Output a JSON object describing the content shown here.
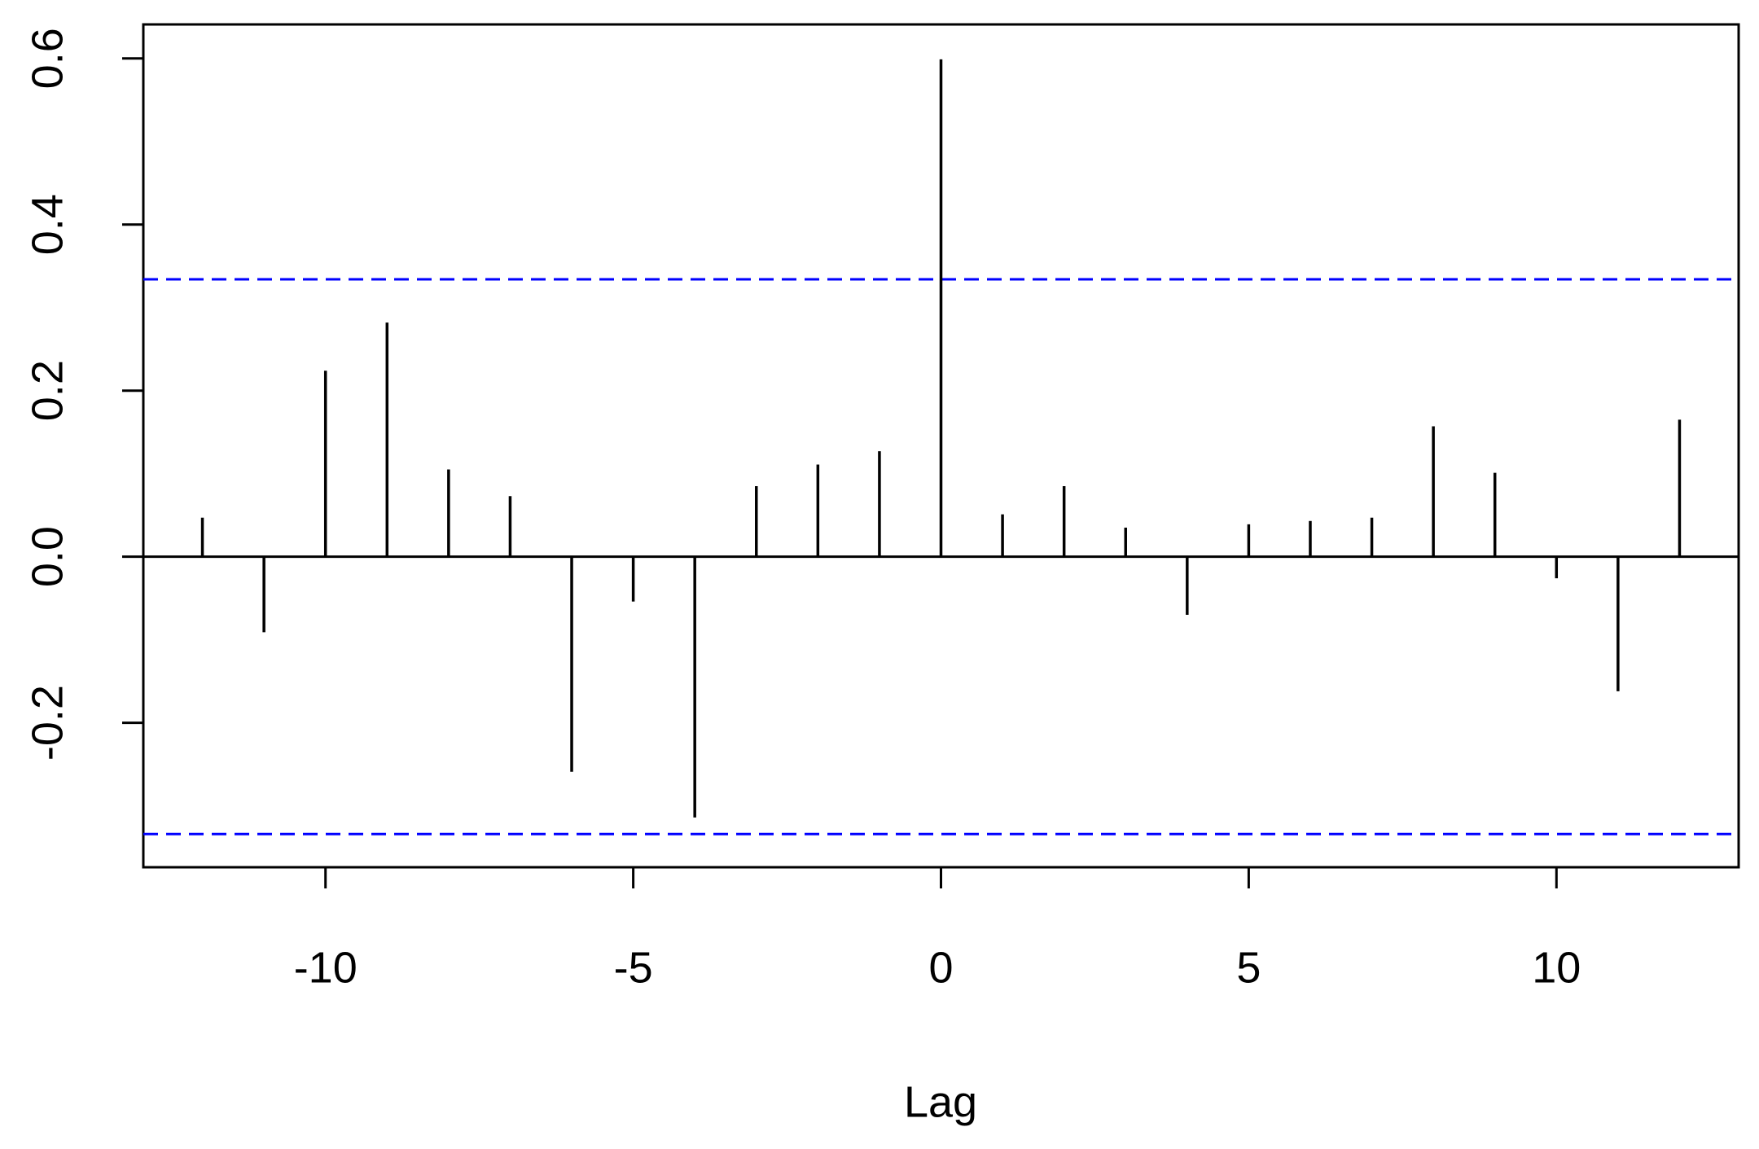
{
  "chart_data": {
    "type": "stem",
    "x_label": "Lag",
    "x": [
      -12,
      -11,
      -10,
      -9,
      -8,
      -7,
      -6,
      -5,
      -4,
      -3,
      -2,
      -1,
      0,
      1,
      2,
      3,
      4,
      5,
      6,
      7,
      8,
      9,
      10,
      11,
      12
    ],
    "values": [
      0.047,
      -0.091,
      0.224,
      0.282,
      0.105,
      0.073,
      -0.259,
      -0.054,
      -0.314,
      0.085,
      0.111,
      0.127,
      0.599,
      0.051,
      0.085,
      0.035,
      -0.07,
      0.039,
      0.043,
      0.047,
      0.157,
      0.101,
      -0.026,
      -0.162,
      0.165
    ],
    "color": "#000000",
    "confidence_lines": {
      "values": [
        0.334,
        -0.334
      ],
      "color": "#0000ff"
    },
    "xlim": [
      -12.96,
      12.96
    ],
    "xticks": [
      -10,
      -5,
      0,
      5,
      10
    ],
    "ylim": [
      -0.374,
      0.641
    ],
    "yticks": [
      -0.2,
      {
        "value": 0,
        "label": "0.0"
      },
      0.2,
      0.4,
      0.6
    ],
    "grid": false
  }
}
